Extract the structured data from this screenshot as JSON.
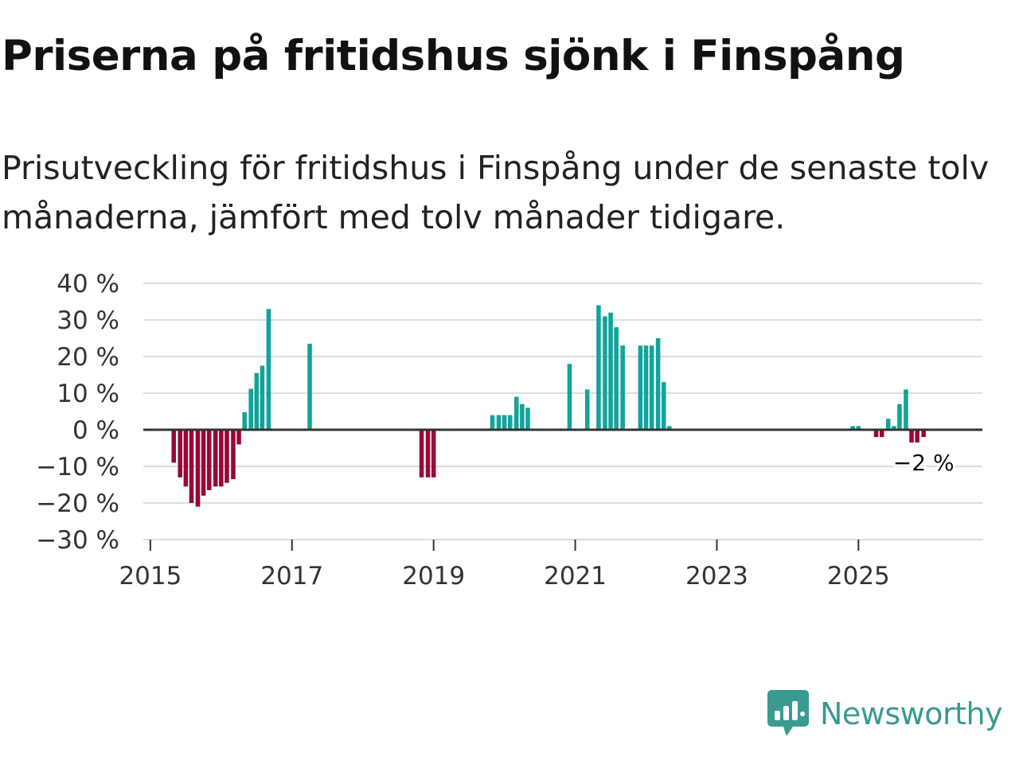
{
  "header": {
    "title": "Priserna på fritidshus sjönk i Finspång",
    "subtitle": "Prisutveckling för fritidshus i Finspång under de senaste tolv månaderna, jämfört med tolv månader tidigare."
  },
  "brand": {
    "name": "Newsworthy",
    "color": "#3a9a92",
    "icon": "newsworthy-logo-icon"
  },
  "colors": {
    "positive": "#12a39a",
    "negative": "#99063a",
    "grid": "#dddddd",
    "zero_line": "#333333"
  },
  "chart_data": {
    "type": "bar",
    "title": "Priserna på fritidshus sjönk i Finspång",
    "xlabel": "",
    "ylabel": "",
    "ylim": [
      -30,
      40
    ],
    "xlim": [
      2014.9,
      2026.75
    ],
    "grid": true,
    "y_ticks": [
      {
        "value": 40,
        "label": "40 %"
      },
      {
        "value": 30,
        "label": "30 %"
      },
      {
        "value": 20,
        "label": "20 %"
      },
      {
        "value": 10,
        "label": "10 %"
      },
      {
        "value": 0,
        "label": "0 %"
      },
      {
        "value": -10,
        "label": "−10 %"
      },
      {
        "value": -20,
        "label": "−20 %"
      },
      {
        "value": -30,
        "label": "−30 %"
      }
    ],
    "x_ticks": [
      {
        "value": 2015,
        "label": "2015"
      },
      {
        "value": 2017,
        "label": "2017"
      },
      {
        "value": 2019,
        "label": "2019"
      },
      {
        "value": 2021,
        "label": "2021"
      },
      {
        "value": 2023,
        "label": "2023"
      },
      {
        "value": 2025,
        "label": "2025"
      }
    ],
    "bar_width_years": 0.0625,
    "series": [
      {
        "name": "Prisutveckling",
        "points": [
          {
            "x": 2015.33,
            "y": -9
          },
          {
            "x": 2015.42,
            "y": -13
          },
          {
            "x": 2015.5,
            "y": -15.5
          },
          {
            "x": 2015.58,
            "y": -20
          },
          {
            "x": 2015.67,
            "y": -21
          },
          {
            "x": 2015.75,
            "y": -18
          },
          {
            "x": 2015.83,
            "y": -16.5
          },
          {
            "x": 2015.92,
            "y": -15.5
          },
          {
            "x": 2016.0,
            "y": -15.5
          },
          {
            "x": 2016.08,
            "y": -14.5
          },
          {
            "x": 2016.17,
            "y": -13.5
          },
          {
            "x": 2016.25,
            "y": -4
          },
          {
            "x": 2016.33,
            "y": 4.8
          },
          {
            "x": 2016.42,
            "y": 11.2
          },
          {
            "x": 2016.5,
            "y": 15.5
          },
          {
            "x": 2016.58,
            "y": 17.5
          },
          {
            "x": 2016.67,
            "y": 33
          },
          {
            "x": 2017.25,
            "y": 23.5
          },
          {
            "x": 2018.83,
            "y": -13
          },
          {
            "x": 2018.92,
            "y": -13
          },
          {
            "x": 2019.0,
            "y": -13
          },
          {
            "x": 2019.83,
            "y": 4
          },
          {
            "x": 2019.92,
            "y": 4
          },
          {
            "x": 2020.0,
            "y": 4
          },
          {
            "x": 2020.08,
            "y": 4
          },
          {
            "x": 2020.17,
            "y": 9
          },
          {
            "x": 2020.25,
            "y": 7
          },
          {
            "x": 2020.33,
            "y": 6
          },
          {
            "x": 2020.92,
            "y": 18
          },
          {
            "x": 2021.17,
            "y": 11
          },
          {
            "x": 2021.33,
            "y": 34
          },
          {
            "x": 2021.42,
            "y": 31
          },
          {
            "x": 2021.5,
            "y": 32
          },
          {
            "x": 2021.58,
            "y": 28
          },
          {
            "x": 2021.67,
            "y": 23
          },
          {
            "x": 2021.92,
            "y": 23
          },
          {
            "x": 2022.0,
            "y": 23
          },
          {
            "x": 2022.08,
            "y": 23
          },
          {
            "x": 2022.17,
            "y": 25
          },
          {
            "x": 2022.25,
            "y": 13
          },
          {
            "x": 2022.33,
            "y": 1
          },
          {
            "x": 2024.92,
            "y": 1
          },
          {
            "x": 2025.0,
            "y": 1
          },
          {
            "x": 2025.25,
            "y": -2
          },
          {
            "x": 2025.33,
            "y": -2
          },
          {
            "x": 2025.42,
            "y": 3
          },
          {
            "x": 2025.5,
            "y": 1
          },
          {
            "x": 2025.58,
            "y": 7
          },
          {
            "x": 2025.67,
            "y": 11
          },
          {
            "x": 2025.75,
            "y": -3.5
          },
          {
            "x": 2025.83,
            "y": -3.5
          },
          {
            "x": 2025.92,
            "y": -2
          }
        ]
      }
    ],
    "annotations": [
      {
        "x": 2025.92,
        "y": -2,
        "text": "−2 %"
      }
    ]
  }
}
